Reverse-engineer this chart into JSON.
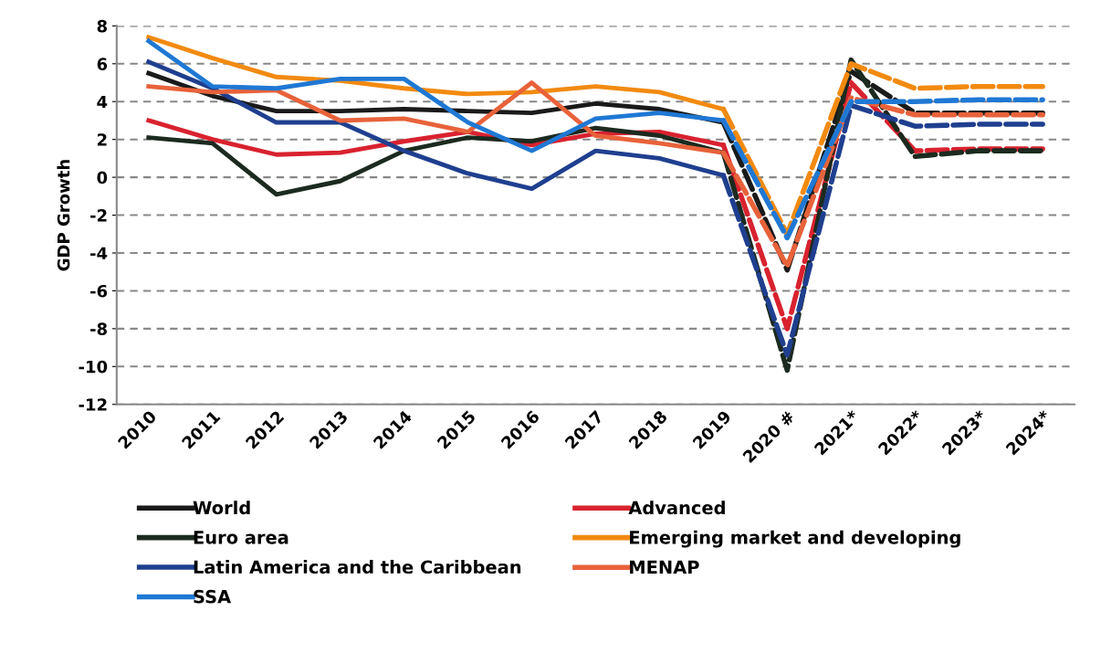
{
  "chart_data": {
    "type": "line",
    "ylabel": "GDP Growth",
    "categories": [
      "2010",
      "2011",
      "2012",
      "2013",
      "2014",
      "2015",
      "2016",
      "2017",
      "2018",
      "2019",
      "2020 #",
      "2021*",
      "2022*",
      "2023*",
      "2024*"
    ],
    "series": [
      {
        "name": "World",
        "color": "#1a1a1a",
        "line_style": "solid",
        "values": [
          5.5,
          4.3,
          3.5,
          3.5,
          3.6,
          3.5,
          3.4,
          3.9,
          3.6,
          2.9,
          null,
          null,
          null,
          null,
          null
        ]
      },
      {
        "name": "Advanced",
        "color": "#d9222f",
        "line_style": "solid",
        "values": [
          3.0,
          2.0,
          1.2,
          1.3,
          1.9,
          2.4,
          1.7,
          2.3,
          2.4,
          1.7,
          null,
          null,
          null,
          null,
          null
        ]
      },
      {
        "name": "Euro area",
        "color": "#1c2a1f",
        "line_style": "solid",
        "values": [
          2.1,
          1.8,
          -0.9,
          -0.2,
          1.4,
          2.1,
          1.9,
          2.6,
          2.2,
          1.3,
          null,
          null,
          null,
          null,
          null
        ]
      },
      {
        "name": "Emerging market and developing",
        "color": "#f28a10",
        "line_style": "solid",
        "values": [
          7.4,
          6.3,
          5.3,
          5.1,
          4.7,
          4.4,
          4.5,
          4.8,
          4.5,
          3.6,
          null,
          null,
          null,
          null,
          null
        ]
      },
      {
        "name": "Latin America and the Caribbean",
        "color": "#1f3f8f",
        "line_style": "solid",
        "values": [
          6.1,
          4.7,
          2.9,
          2.9,
          1.4,
          0.2,
          -0.6,
          1.4,
          1.0,
          0.1,
          null,
          null,
          null,
          null,
          null
        ]
      },
      {
        "name": "MENAP",
        "color": "#e8623a",
        "line_style": "solid",
        "values": [
          4.8,
          4.5,
          4.6,
          3.0,
          3.1,
          2.4,
          5.0,
          2.2,
          1.8,
          1.3,
          null,
          null,
          null,
          null,
          null
        ]
      },
      {
        "name": "SSA",
        "color": "#1f78d4",
        "line_style": "solid",
        "values": [
          7.2,
          4.8,
          4.7,
          5.2,
          5.2,
          2.9,
          1.4,
          3.1,
          3.4,
          3.0,
          null,
          null,
          null,
          null,
          null
        ]
      },
      {
        "color": "#1a1a1a",
        "line_style": "dashed",
        "values": [
          null,
          null,
          null,
          null,
          null,
          null,
          null,
          null,
          null,
          2.9,
          -4.9,
          5.6,
          3.4,
          3.4,
          3.4
        ]
      },
      {
        "color": "#d9222f",
        "line_style": "dashed",
        "values": [
          null,
          null,
          null,
          null,
          null,
          null,
          null,
          null,
          null,
          1.7,
          -8.0,
          5.0,
          1.4,
          1.5,
          1.5
        ]
      },
      {
        "color": "#1c2a1f",
        "line_style": "dashed",
        "values": [
          null,
          null,
          null,
          null,
          null,
          null,
          null,
          null,
          null,
          1.3,
          -10.2,
          6.2,
          1.1,
          1.4,
          1.4
        ]
      },
      {
        "color": "#f28a10",
        "line_style": "dashed",
        "values": [
          null,
          null,
          null,
          null,
          null,
          null,
          null,
          null,
          null,
          3.6,
          -3.0,
          6.0,
          4.7,
          4.8,
          4.8
        ]
      },
      {
        "color": "#1f3f8f",
        "line_style": "dashed",
        "values": [
          null,
          null,
          null,
          null,
          null,
          null,
          null,
          null,
          null,
          0.1,
          -9.4,
          3.8,
          2.7,
          2.8,
          2.8
        ]
      },
      {
        "color": "#e8623a",
        "line_style": "dashed",
        "values": [
          null,
          null,
          null,
          null,
          null,
          null,
          null,
          null,
          null,
          1.3,
          -4.7,
          4.2,
          3.3,
          3.3,
          3.3
        ]
      },
      {
        "color": "#1f78d4",
        "line_style": "dashed",
        "values": [
          null,
          null,
          null,
          null,
          null,
          null,
          null,
          null,
          null,
          3.0,
          -3.2,
          4.0,
          4.0,
          4.1,
          4.1
        ]
      }
    ],
    "ylim": [
      -12,
      8
    ],
    "yticks": [
      -12,
      -10,
      -8,
      -6,
      -4,
      -2,
      0,
      2,
      4,
      6,
      8
    ],
    "grid": "y",
    "legend": "bottom"
  }
}
